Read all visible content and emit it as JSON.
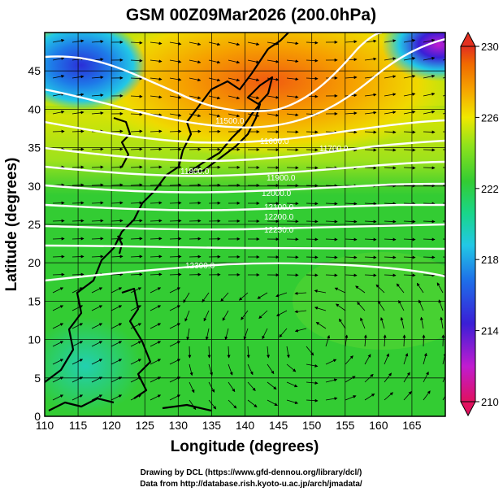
{
  "title": "GSM 00Z09Mar2026 (200.0hPa)",
  "axes": {
    "xlabel": "Longitude (degrees)",
    "ylabel": "Latitude (degrees)",
    "xlim": [
      110,
      170
    ],
    "ylim": [
      0,
      50
    ],
    "xticks": [
      "110",
      "115",
      "120",
      "125",
      "130",
      "135",
      "140",
      "145",
      "150",
      "155",
      "160",
      "165"
    ],
    "yticks": [
      "0",
      "5",
      "10",
      "15",
      "20",
      "25",
      "30",
      "35",
      "40",
      "45"
    ]
  },
  "colorbar": {
    "labels": [
      "230",
      "226",
      "222",
      "218",
      "214",
      "210"
    ],
    "colors": [
      "#e0115f",
      "#c01cd0",
      "#3a1fd6",
      "#1e6ee8",
      "#22c8e6",
      "#19d68a",
      "#33cc33",
      "#8ee21c",
      "#f0e800",
      "#f6a200",
      "#f06a00",
      "#e33020"
    ]
  },
  "contour_labels": [
    "11500.0",
    "11600.0",
    "11700.0",
    "11800.0",
    "11900.0",
    "12000.0",
    "12100.0",
    "12200.0",
    "12250.0",
    "12300.0"
  ],
  "footer": {
    "line1": "Drawing by DCL (https://www.gfd-dennou.org/library/dcl/)",
    "line2": "Data from http://database.rish.kyoto-u.ac.jp/arch/jmadata/"
  }
}
